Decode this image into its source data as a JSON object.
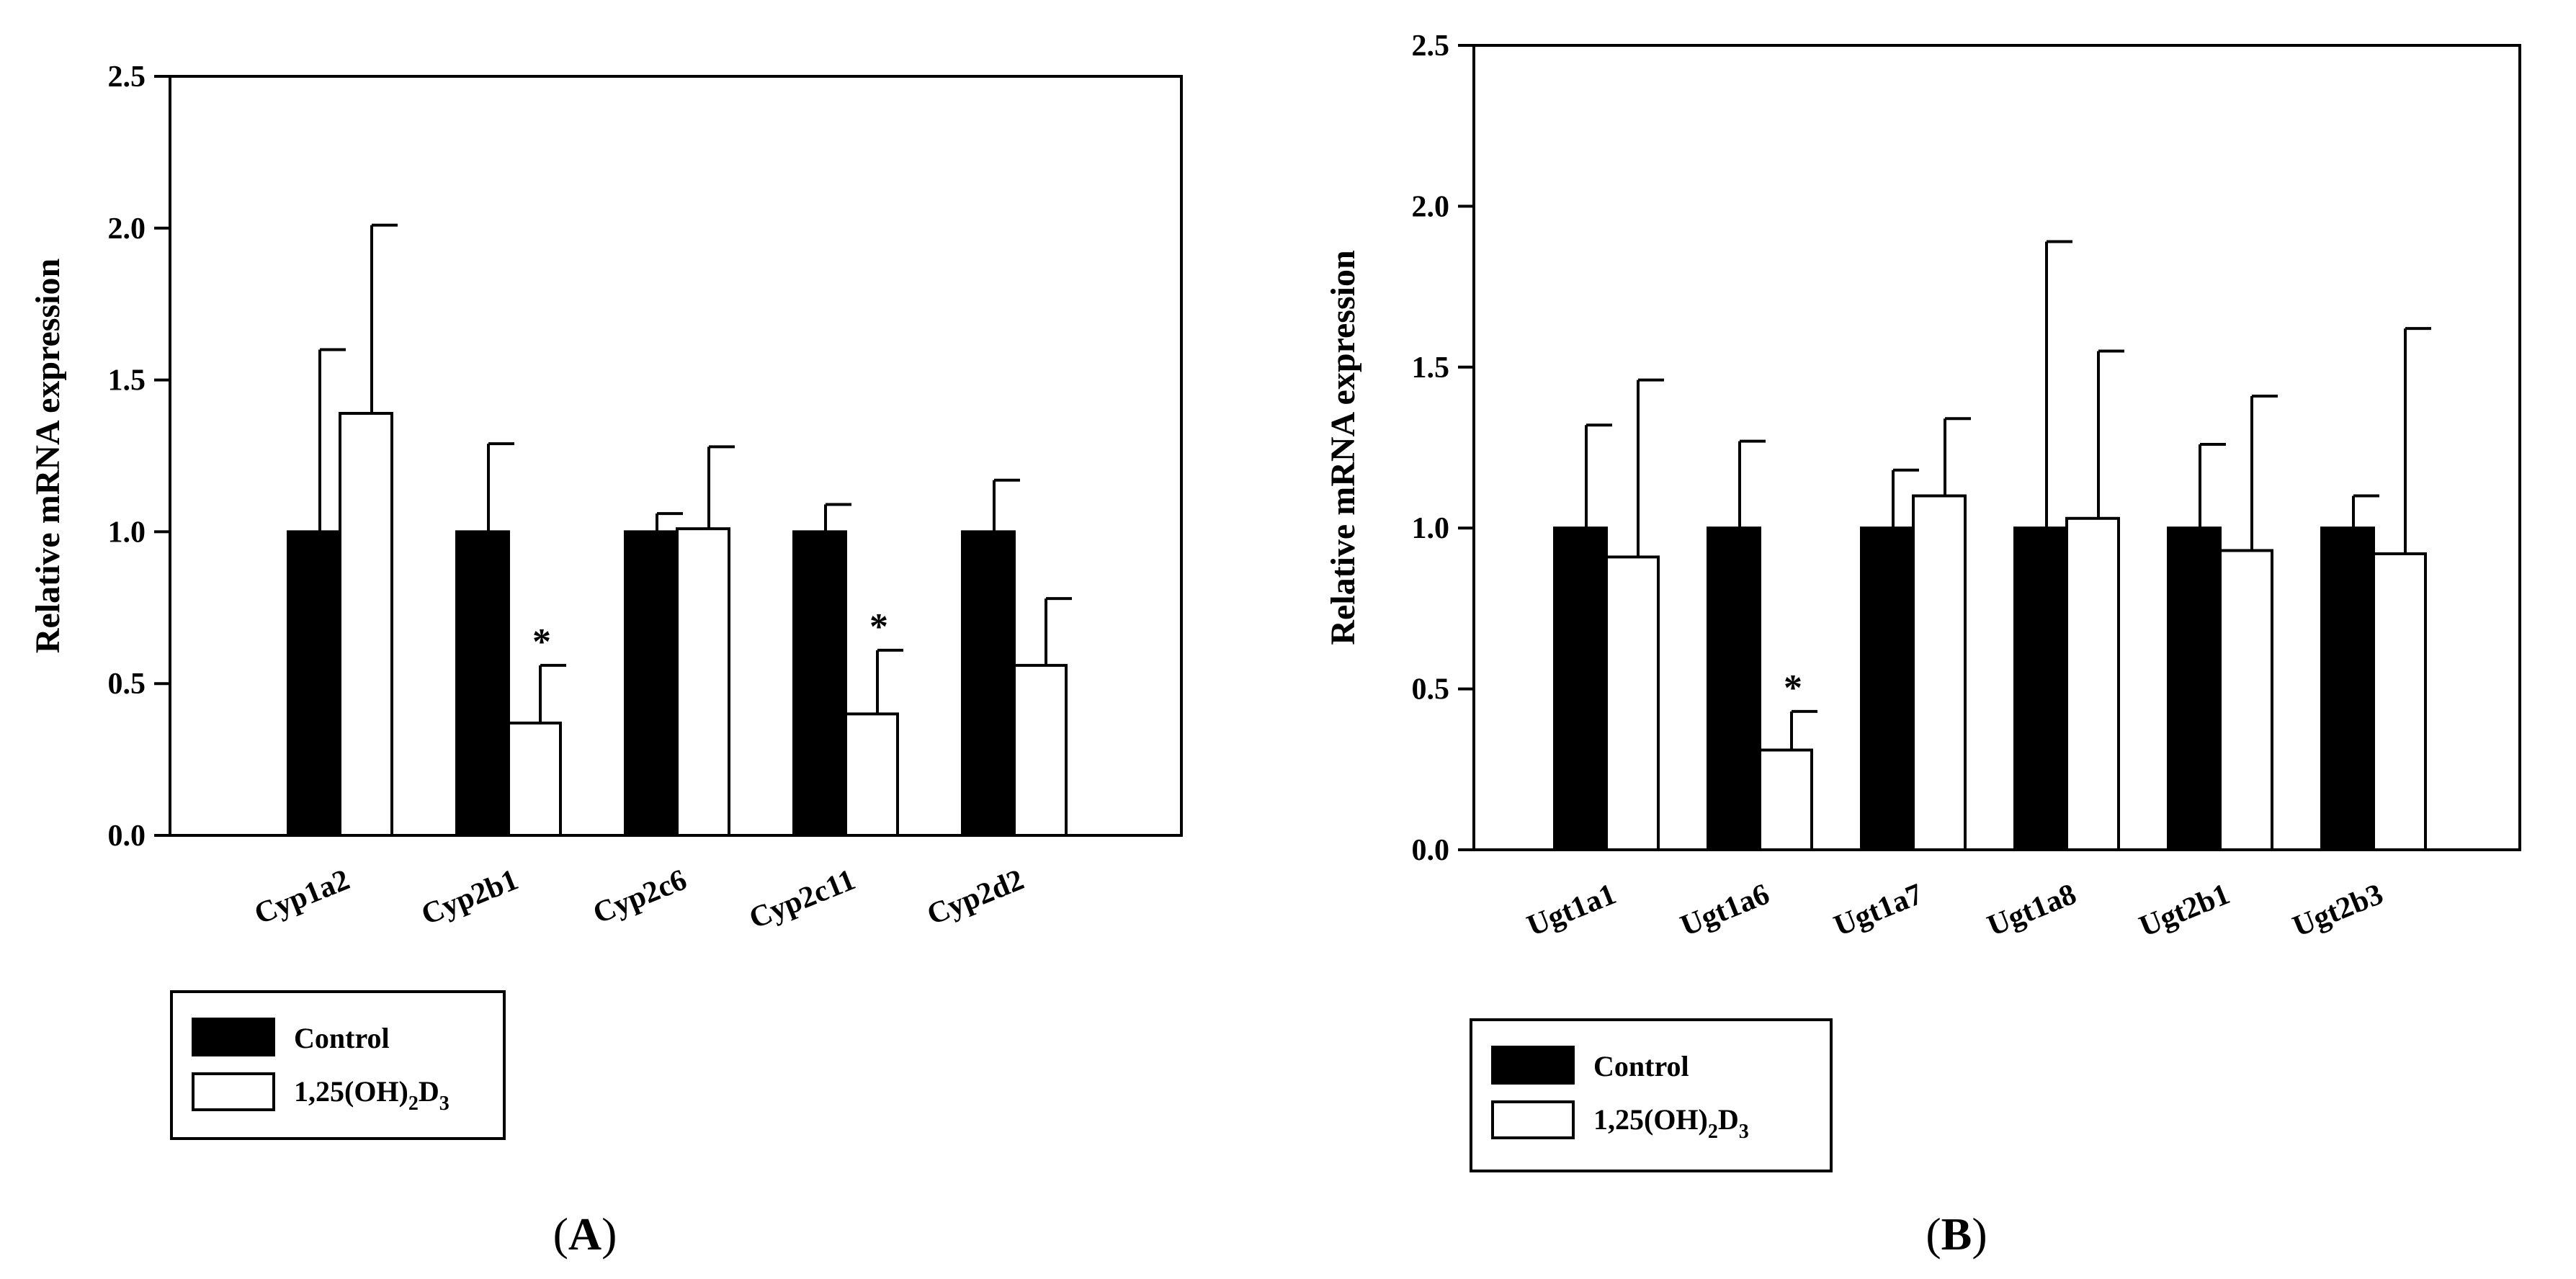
{
  "chart_data": [
    {
      "type": "bar",
      "panel": "A",
      "ylabel": "Relative mRNA expression",
      "xlabel": "",
      "ylim": [
        0,
        2.5
      ],
      "yticks": [
        "0.0",
        "0.5",
        "1.0",
        "1.5",
        "2.0",
        "2.5"
      ],
      "categories": [
        "Cyp1a2",
        "Cyp2b1",
        "Cyp2c6",
        "Cyp2c11",
        "Cyp2d2"
      ],
      "series": [
        {
          "name": "Control",
          "color": "#000000",
          "values": [
            1.0,
            1.0,
            1.0,
            1.0,
            1.0
          ],
          "errors": [
            0.6,
            0.29,
            0.06,
            0.09,
            0.17
          ]
        },
        {
          "name": "1,25(OH)2D3",
          "color": "#ffffff",
          "values": [
            1.39,
            0.37,
            1.01,
            0.4,
            0.56
          ],
          "errors": [
            0.62,
            0.19,
            0.27,
            0.21,
            0.22
          ]
        }
      ],
      "significance": [
        "",
        "*",
        "",
        "*",
        ""
      ],
      "legend": {
        "control": "Control",
        "treated_main": "1,25(OH)",
        "treated_sub1": "2",
        "treated_mid": "D",
        "treated_sub2": "3"
      }
    },
    {
      "type": "bar",
      "panel": "B",
      "ylabel": "Relative mRNA expression",
      "xlabel": "",
      "ylim": [
        0,
        2.5
      ],
      "yticks": [
        "0.0",
        "0.5",
        "1.0",
        "1.5",
        "2.0",
        "2.5"
      ],
      "categories": [
        "Ugt1a1",
        "Ugt1a6",
        "Ugt1a7",
        "Ugt1a8",
        "Ugt2b1",
        "Ugt2b3"
      ],
      "series": [
        {
          "name": "Control",
          "color": "#000000",
          "values": [
            1.0,
            1.0,
            1.0,
            1.0,
            1.0,
            1.0
          ],
          "errors": [
            0.32,
            0.27,
            0.18,
            0.89,
            0.26,
            0.1
          ]
        },
        {
          "name": "1,25(OH)2D3",
          "color": "#ffffff",
          "values": [
            0.91,
            0.31,
            1.1,
            1.03,
            0.93,
            0.92
          ],
          "errors": [
            0.55,
            0.12,
            0.24,
            0.52,
            0.48,
            0.7
          ]
        }
      ],
      "significance": [
        "",
        "*",
        "",
        "",
        "",
        ""
      ],
      "legend": {
        "control": "Control",
        "treated_main": "1,25(OH)",
        "treated_sub1": "2",
        "treated_mid": "D",
        "treated_sub2": "3"
      }
    }
  ],
  "panel_labels": [
    {
      "open": "(",
      "letter": "A",
      "close": ")"
    },
    {
      "open": "(",
      "letter": "B",
      "close": ")"
    }
  ]
}
